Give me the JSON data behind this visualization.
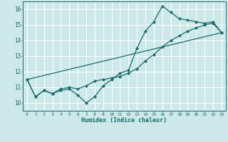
{
  "title": "",
  "xlabel": "Humidex (Indice chaleur)",
  "ylabel": "",
  "xlim": [
    -0.5,
    23.5
  ],
  "ylim": [
    9.5,
    16.5
  ],
  "xticks": [
    0,
    1,
    2,
    3,
    4,
    5,
    6,
    7,
    8,
    9,
    10,
    11,
    12,
    13,
    14,
    15,
    16,
    17,
    18,
    19,
    20,
    21,
    22,
    23
  ],
  "yticks": [
    10,
    11,
    12,
    13,
    14,
    15,
    16
  ],
  "bg_color": "#cce8e8",
  "grid_color": "#ffffff",
  "line_color": "#1a6b6b",
  "series1_x": [
    0,
    1,
    2,
    3,
    4,
    5,
    6,
    7,
    8,
    9,
    10,
    11,
    12,
    13,
    14,
    15,
    16,
    17,
    18,
    19,
    20,
    21,
    22,
    23
  ],
  "series1_y": [
    11.5,
    10.4,
    10.8,
    10.6,
    10.8,
    10.9,
    10.5,
    10.0,
    10.4,
    11.1,
    11.5,
    11.9,
    12.1,
    13.5,
    14.6,
    15.2,
    16.2,
    15.8,
    15.4,
    15.3,
    15.2,
    15.1,
    15.2,
    14.5
  ],
  "series2_x": [
    0,
    1,
    2,
    3,
    4,
    5,
    6,
    7,
    8,
    9,
    10,
    11,
    12,
    13,
    14,
    15,
    16,
    17,
    18,
    19,
    20,
    21,
    22,
    23
  ],
  "series2_y": [
    11.5,
    10.4,
    10.8,
    10.6,
    10.9,
    11.0,
    10.9,
    11.1,
    11.4,
    11.5,
    11.6,
    11.7,
    11.9,
    12.2,
    12.7,
    13.1,
    13.6,
    14.0,
    14.3,
    14.6,
    14.8,
    15.0,
    15.1,
    14.5
  ],
  "series3_x": [
    0,
    23
  ],
  "series3_y": [
    11.5,
    14.5
  ]
}
